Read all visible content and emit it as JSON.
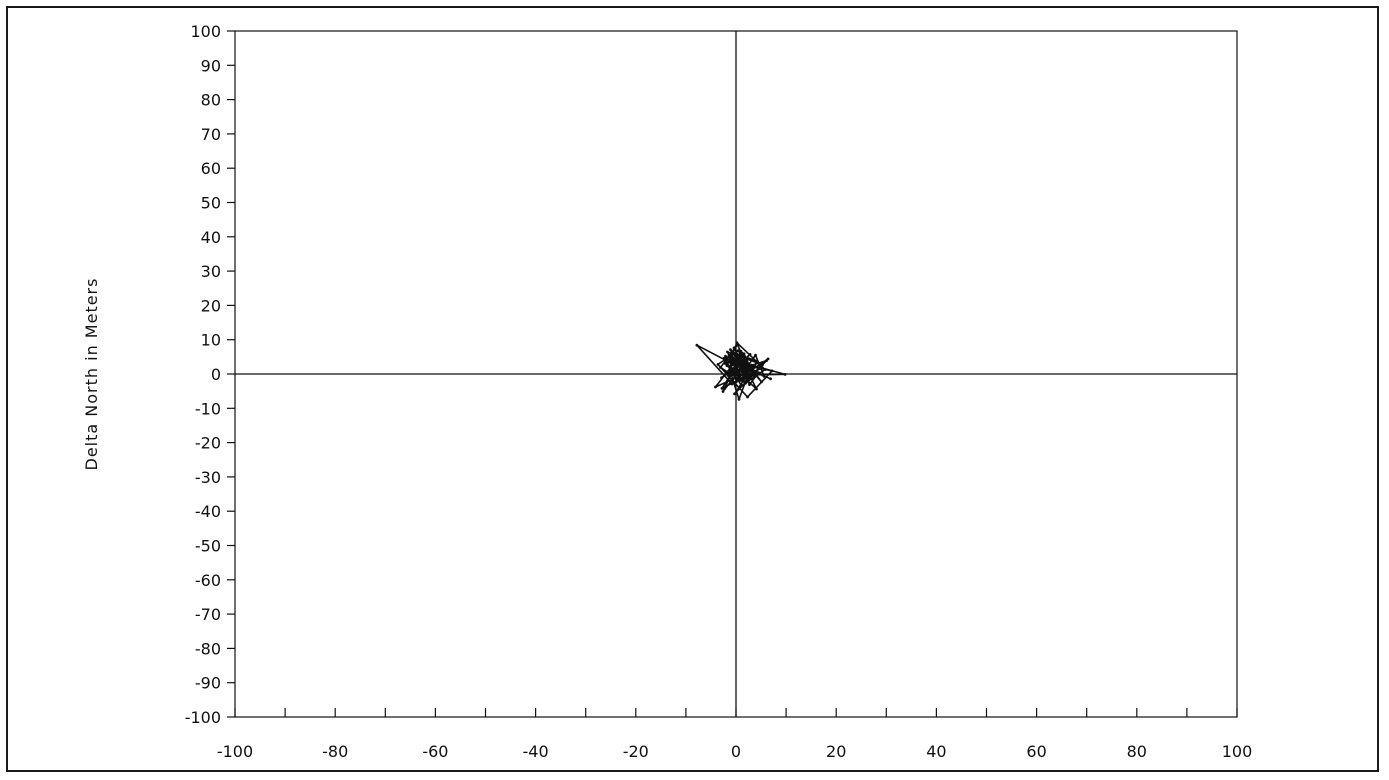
{
  "chart_data": {
    "type": "line",
    "xlabel": "",
    "ylabel": "Delta North in Meters",
    "xlim": [
      -100,
      100
    ],
    "ylim": [
      -100,
      100
    ],
    "x_ticks": [
      -100,
      -90,
      -80,
      -70,
      -60,
      -50,
      -40,
      -30,
      -20,
      -10,
      0,
      10,
      20,
      30,
      40,
      50,
      60,
      70,
      80,
      90,
      100
    ],
    "x_tick_labels": [
      "-100",
      "-80",
      "-60",
      "-40",
      "-20",
      "0",
      "20",
      "40",
      "60",
      "80",
      "100"
    ],
    "y_ticks": [
      100,
      90,
      80,
      70,
      60,
      50,
      40,
      30,
      20,
      10,
      0,
      -10,
      -20,
      -30,
      -40,
      -50,
      -60,
      -70,
      -80,
      -90,
      -100
    ],
    "y_tick_labels": [
      "100",
      "90",
      "80",
      "70",
      "60",
      "50",
      "40",
      "30",
      "20",
      "10",
      "0",
      "-10",
      "-20",
      "-30",
      "-40",
      "-50",
      "-60",
      "-70",
      "-80",
      "-90",
      "-100"
    ],
    "grid": false,
    "zero_lines": true,
    "series": [
      {
        "color": "#111111",
        "x": [
          -2.2,
          0.8,
          -1.4,
          2.6,
          0.3,
          -3.1,
          1.9,
          4.2,
          -0.6,
          2.9,
          -1.8,
          0.2,
          5.8,
          1.1,
          -2.4,
          3.3,
          -0.3,
          6.4,
          2.1,
          -1.1,
          0.9,
          4.8,
          -2.8,
          1.6,
          3.7,
          -0.9,
          7.2,
          2.3,
          -3.6,
          0.4,
          5.1,
          1.3,
          -1.6,
          9.8,
          3.1,
          0.6,
          -2.1,
          4.5,
          2.7,
          -0.4,
          1.8,
          6.9,
          -1.3,
          0.1,
          3.9,
          5.6,
          1.4,
          -2.6,
          0.7,
          2.4,
          -7.8,
          -0.8,
          1.2,
          3.4,
          -4.1,
          0.2,
          2.2,
          5.3,
          -1.7,
          0.5,
          1.5,
          4.1,
          -0.2,
          2.8,
          -2.9,
          0.9,
          3.6,
          1.0,
          -1.2,
          2.0,
          6.1,
          0.3,
          -0.5,
          1.7,
          3.0
        ],
        "y": [
          3.1,
          -1.2,
          5.4,
          0.8,
          8.6,
          1.9,
          -2.7,
          3.8,
          6.2,
          -0.6,
          2.4,
          9.1,
          1.3,
          -3.4,
          4.6,
          2.1,
          -5.8,
          4.4,
          0.2,
          7.1,
          -1.9,
          1.6,
          -4.2,
          5.9,
          -0.8,
          3.3,
          0.9,
          -6.7,
          2.8,
          6.8,
          -2.3,
          4.1,
          -0.4,
          -0.1,
          2.6,
          -7.4,
          5.2,
          0.4,
          -3.1,
          7.6,
          1.8,
          -1.4,
          3.7,
          -2.2,
          5.5,
          -0.7,
          2.3,
          -5.1,
          4.9,
          0.6,
          8.4,
          -2.9,
          6.1,
          1.1,
          -3.8,
          4.3,
          -1.6,
          2.7,
          6.4,
          -0.3,
          3.2,
          -4.4,
          1.5,
          5.7,
          -1.1,
          2.9,
          0.1,
          6.6,
          2.2,
          -2.5,
          3.9,
          1.2,
          4.7,
          -0.9,
          2.0
        ]
      }
    ]
  },
  "colors": {
    "axis": "#111111",
    "data": "#111111",
    "background": "#ffffff"
  }
}
